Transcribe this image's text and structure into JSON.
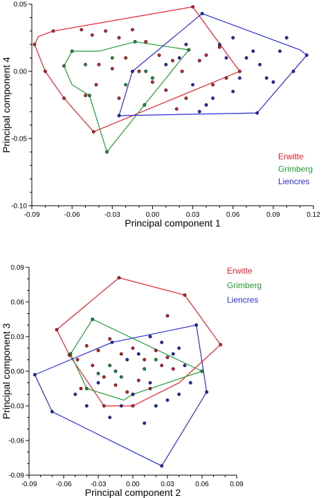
{
  "chart_data": [
    {
      "type": "scatter",
      "title": "",
      "xlabel": "Principal component 1",
      "ylabel": "Principal component 4",
      "xlim": [
        -0.09,
        0.12
      ],
      "ylim": [
        -0.1,
        0.05
      ],
      "xticks": [
        -0.09,
        -0.06,
        -0.03,
        0.0,
        0.03,
        0.06,
        0.09,
        0.12
      ],
      "xtick_labels": [
        "-0.09",
        "-0.06",
        "-0.03",
        "0.00",
        "0.03",
        "0.06",
        "0.09",
        "0.12"
      ],
      "yticks": [
        0.05,
        0.0,
        -0.05,
        -0.1
      ],
      "ytick_labels": [
        "0.05",
        "0.00",
        "-0.05",
        "-0.10"
      ],
      "legend": "right",
      "series": [
        {
          "name": "Erwitte",
          "color": "#e0202a",
          "hull": [
            [
              -0.088,
              0.02
            ],
            [
              -0.085,
              0.026
            ],
            [
              -0.074,
              0.03
            ],
            [
              0.03,
              0.048
            ],
            [
              0.065,
              0.0
            ],
            [
              -0.044,
              -0.045
            ],
            [
              -0.066,
              -0.02
            ],
            [
              -0.08,
              0.0
            ]
          ],
          "points": [
            [
              -0.088,
              0.02
            ],
            [
              -0.074,
              0.03
            ],
            [
              0.03,
              0.048
            ],
            [
              0.065,
              0.0
            ],
            [
              -0.044,
              -0.045
            ],
            [
              -0.066,
              -0.02
            ],
            [
              -0.08,
              0.0
            ],
            [
              -0.053,
              0.031
            ],
            [
              -0.045,
              0.027
            ],
            [
              -0.035,
              0.03
            ],
            [
              -0.025,
              0.025
            ],
            [
              -0.015,
              0.031
            ],
            [
              -0.005,
              0.022
            ],
            [
              0.005,
              0.012
            ],
            [
              0.015,
              0.008
            ],
            [
              0.022,
              0.0
            ],
            [
              -0.04,
              0.005
            ],
            [
              -0.03,
              0.002
            ],
            [
              -0.02,
              0.01
            ],
            [
              -0.01,
              0.0
            ],
            [
              0.0,
              -0.008
            ],
            [
              0.01,
              -0.014
            ],
            [
              0.025,
              -0.02
            ],
            [
              0.035,
              0.008
            ],
            [
              0.045,
              -0.01
            ],
            [
              0.055,
              -0.005
            ],
            [
              -0.05,
              -0.018
            ],
            [
              -0.042,
              -0.01
            ],
            [
              -0.025,
              -0.02
            ],
            [
              0.04,
              0.012
            ],
            [
              0.018,
              -0.028
            ],
            [
              0.05,
              0.018
            ]
          ]
        },
        {
          "name": "Grimberg",
          "color": "#1e9a33",
          "hull": [
            [
              -0.066,
              0.004
            ],
            [
              -0.06,
              0.015
            ],
            [
              -0.04,
              0.015
            ],
            [
              -0.013,
              0.022
            ],
            [
              0.027,
              0.016
            ],
            [
              -0.006,
              -0.025
            ],
            [
              -0.034,
              -0.06
            ],
            [
              -0.047,
              -0.018
            ],
            [
              -0.06,
              -0.01
            ]
          ],
          "points": [
            [
              -0.066,
              0.004
            ],
            [
              -0.06,
              0.015
            ],
            [
              -0.013,
              0.022
            ],
            [
              0.027,
              0.016
            ],
            [
              -0.006,
              -0.025
            ],
            [
              -0.034,
              -0.06
            ],
            [
              -0.047,
              -0.018
            ],
            [
              -0.05,
              0.005
            ],
            [
              -0.03,
              0.01
            ],
            [
              -0.02,
              -0.01
            ],
            [
              0.0,
              -0.005
            ],
            [
              -0.005,
              0.0
            ]
          ]
        },
        {
          "name": "Liencres",
          "color": "#2a2ad0",
          "hull": [
            [
              -0.025,
              -0.033
            ],
            [
              -0.015,
              0.0
            ],
            [
              0.037,
              0.043
            ],
            [
              0.11,
              0.016
            ],
            [
              0.115,
              0.012
            ],
            [
              0.078,
              -0.031
            ]
          ],
          "points": [
            [
              -0.025,
              -0.033
            ],
            [
              -0.015,
              0.0
            ],
            [
              0.037,
              0.043
            ],
            [
              0.115,
              0.012
            ],
            [
              0.078,
              -0.031
            ],
            [
              0.04,
              -0.025
            ],
            [
              0.05,
              0.02
            ],
            [
              0.06,
              0.025
            ],
            [
              0.07,
              0.01
            ],
            [
              0.08,
              0.005
            ],
            [
              0.09,
              -0.008
            ],
            [
              0.1,
              0.025
            ],
            [
              0.105,
              0.0
            ],
            [
              0.02,
              0.01
            ],
            [
              0.01,
              0.005
            ],
            [
              0.03,
              -0.01
            ],
            [
              0.045,
              -0.02
            ],
            [
              0.06,
              -0.015
            ],
            [
              0.085,
              -0.005
            ],
            [
              0.075,
              0.015
            ],
            [
              0.055,
              0.01
            ],
            [
              0.035,
              -0.03
            ],
            [
              0.025,
              0.02
            ],
            [
              0.065,
              -0.005
            ],
            [
              0.095,
              0.015
            ]
          ]
        }
      ]
    },
    {
      "type": "scatter",
      "title": "",
      "xlabel": "Principal component 2",
      "ylabel": "Principal component 3",
      "xlim": [
        -0.09,
        0.09
      ],
      "ylim": [
        -0.09,
        0.09
      ],
      "xticks": [
        -0.09,
        -0.06,
        -0.03,
        0.0,
        0.03,
        0.06,
        0.09
      ],
      "xtick_labels": [
        "-0.09",
        "-0.06",
        "-0.03",
        "0.00",
        "0.03",
        "0.06",
        "0.09"
      ],
      "yticks": [
        0.09,
        0.06,
        0.03,
        0.0,
        -0.03,
        -0.06,
        -0.09
      ],
      "ytick_labels": [
        "0.09",
        "0.06",
        "0.03",
        "0.00",
        "-0.03",
        "-0.06",
        "-0.09"
      ],
      "legend": "top-right",
      "series": [
        {
          "name": "Erwitte",
          "color": "#e0202a",
          "hull": [
            [
              -0.066,
              0.036
            ],
            [
              -0.012,
              0.081
            ],
            [
              0.045,
              0.066
            ],
            [
              0.076,
              0.023
            ],
            [
              0.04,
              -0.01
            ],
            [
              0.0,
              -0.03
            ],
            [
              -0.025,
              -0.03
            ],
            [
              -0.055,
              0.014
            ]
          ],
          "points": [
            [
              -0.066,
              0.036
            ],
            [
              -0.012,
              0.081
            ],
            [
              0.045,
              0.066
            ],
            [
              0.076,
              0.023
            ],
            [
              -0.055,
              0.014
            ],
            [
              -0.025,
              -0.03
            ],
            [
              0.0,
              -0.03
            ],
            [
              -0.048,
              0.01
            ],
            [
              -0.04,
              0.022
            ],
            [
              -0.03,
              0.018
            ],
            [
              -0.02,
              0.028
            ],
            [
              -0.01,
              0.015
            ],
            [
              0.0,
              0.02
            ],
            [
              0.01,
              0.01
            ],
            [
              0.02,
              0.018
            ],
            [
              0.03,
              0.012
            ],
            [
              -0.035,
              0.005
            ],
            [
              -0.025,
              -0.005
            ],
            [
              -0.015,
              -0.012
            ],
            [
              -0.005,
              -0.018
            ],
            [
              0.005,
              -0.008
            ],
            [
              0.015,
              -0.015
            ],
            [
              0.025,
              0.005
            ],
            [
              0.035,
              0.002
            ],
            [
              -0.045,
              -0.015
            ],
            [
              0.03,
              0.048
            ]
          ]
        },
        {
          "name": "Grimberg",
          "color": "#1e9a33",
          "hull": [
            [
              -0.054,
              0.015
            ],
            [
              -0.035,
              0.045
            ],
            [
              0.06,
              0.0
            ],
            [
              0.0,
              -0.02
            ],
            [
              -0.008,
              -0.025
            ],
            [
              -0.04,
              -0.015
            ]
          ],
          "points": [
            [
              -0.054,
              0.015
            ],
            [
              -0.035,
              0.045
            ],
            [
              0.06,
              0.0
            ],
            [
              0.0,
              -0.02
            ],
            [
              -0.04,
              -0.015
            ],
            [
              -0.02,
              0.005
            ],
            [
              -0.01,
              -0.005
            ],
            [
              0.01,
              0.002
            ],
            [
              0.02,
              0.01
            ],
            [
              -0.03,
              -0.002
            ],
            [
              -0.015,
              0.0
            ]
          ]
        },
        {
          "name": "Liencres",
          "color": "#2a2ad0",
          "hull": [
            [
              -0.085,
              -0.003
            ],
            [
              -0.07,
              -0.035
            ],
            [
              0.025,
              -0.082
            ],
            [
              0.064,
              -0.018
            ],
            [
              0.055,
              0.04
            ],
            [
              -0.018,
              0.025
            ]
          ],
          "points": [
            [
              -0.085,
              -0.003
            ],
            [
              -0.07,
              -0.035
            ],
            [
              0.025,
              -0.082
            ],
            [
              0.064,
              -0.018
            ],
            [
              0.055,
              0.04
            ],
            [
              -0.018,
              0.025
            ],
            [
              -0.05,
              -0.02
            ],
            [
              -0.04,
              -0.03
            ],
            [
              -0.03,
              -0.01
            ],
            [
              -0.02,
              -0.04
            ],
            [
              -0.01,
              -0.03
            ],
            [
              0.0,
              -0.02
            ],
            [
              0.01,
              -0.045
            ],
            [
              0.02,
              -0.03
            ],
            [
              0.03,
              -0.025
            ],
            [
              0.04,
              -0.02
            ],
            [
              0.05,
              -0.01
            ],
            [
              0.045,
              0.005
            ],
            [
              0.035,
              0.015
            ],
            [
              0.025,
              0.025
            ],
            [
              0.015,
              0.03
            ],
            [
              0.005,
              0.015
            ],
            [
              -0.005,
              0.01
            ],
            [
              0.015,
              -0.01
            ],
            [
              0.04,
              0.02
            ]
          ]
        }
      ]
    }
  ]
}
